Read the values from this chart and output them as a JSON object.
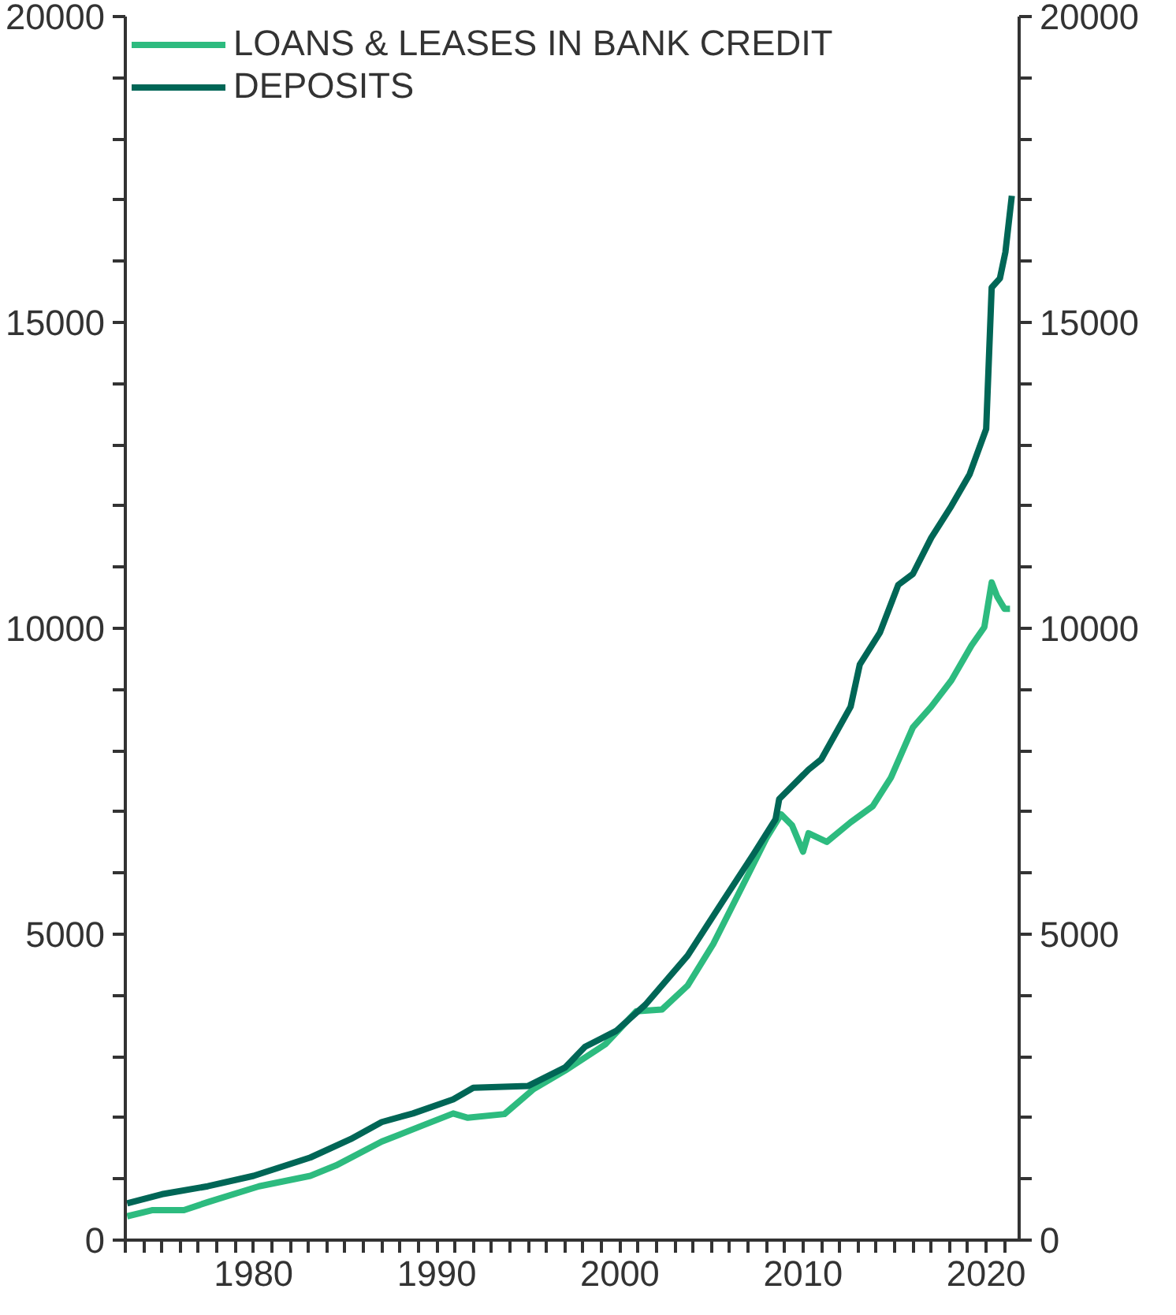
{
  "chart_data": {
    "type": "line",
    "legend": "top left",
    "grid": false,
    "xlim": [
      1973,
      2021.8
    ],
    "xticks": [
      {
        "value": 1973,
        "label": null
      },
      {
        "value": 1974,
        "label": null
      },
      {
        "value": 1975,
        "label": null
      },
      {
        "value": 1976,
        "label": null
      },
      {
        "value": 1977,
        "label": null
      },
      {
        "value": 1978,
        "label": null
      },
      {
        "value": 1979,
        "label": null
      },
      1980,
      {
        "value": 1981,
        "label": null
      },
      {
        "value": 1982,
        "label": null
      },
      {
        "value": 1983,
        "label": null
      },
      {
        "value": 1984,
        "label": null
      },
      {
        "value": 1985,
        "label": null
      },
      {
        "value": 1986,
        "label": null
      },
      {
        "value": 1987,
        "label": null
      },
      {
        "value": 1988,
        "label": null
      },
      {
        "value": 1989,
        "label": null
      },
      1990,
      {
        "value": 1991,
        "label": null
      },
      {
        "value": 1992,
        "label": null
      },
      {
        "value": 1993,
        "label": null
      },
      {
        "value": 1994,
        "label": null
      },
      {
        "value": 1995,
        "label": null
      },
      {
        "value": 1996,
        "label": null
      },
      {
        "value": 1997,
        "label": null
      },
      {
        "value": 1998,
        "label": null
      },
      {
        "value": 1999,
        "label": null
      },
      2000,
      {
        "value": 2001,
        "label": null
      },
      {
        "value": 2002,
        "label": null
      },
      {
        "value": 2003,
        "label": null
      },
      {
        "value": 2004,
        "label": null
      },
      {
        "value": 2005,
        "label": null
      },
      {
        "value": 2006,
        "label": null
      },
      {
        "value": 2007,
        "label": null
      },
      {
        "value": 2008,
        "label": null
      },
      {
        "value": 2009,
        "label": null
      },
      2010,
      {
        "value": 2011,
        "label": null
      },
      {
        "value": 2012,
        "label": null
      },
      {
        "value": 2013,
        "label": null
      },
      {
        "value": 2014,
        "label": null
      },
      {
        "value": 2015,
        "label": null
      },
      {
        "value": 2016,
        "label": null
      },
      {
        "value": 2017,
        "label": null
      },
      {
        "value": 2018,
        "label": null
      },
      {
        "value": 2019,
        "label": null
      },
      2020,
      {
        "value": 2021,
        "label": null
      }
    ],
    "ylim": [
      0,
      20000
    ],
    "yticks": [
      0,
      {
        "value": 1000,
        "label": null
      },
      {
        "value": 2000,
        "label": null
      },
      {
        "value": 3000,
        "label": null
      },
      {
        "value": 4000,
        "label": null
      },
      5000,
      {
        "value": 6000,
        "label": null
      },
      {
        "value": 7000,
        "label": null
      },
      {
        "value": 8000,
        "label": null
      },
      {
        "value": 9000,
        "label": null
      },
      10000,
      {
        "value": 11000,
        "label": null
      },
      {
        "value": 12000,
        "label": null
      },
      {
        "value": 13000,
        "label": null
      },
      {
        "value": 14000,
        "label": null
      },
      15000,
      {
        "value": 16000,
        "label": null
      },
      {
        "value": 17000,
        "label": null
      },
      {
        "value": 18000,
        "label": null
      },
      {
        "value": 19000,
        "label": null
      },
      20000
    ],
    "y2lim": [
      0,
      20000
    ],
    "y2ticks": [
      0,
      {
        "value": 1000,
        "label": null
      },
      {
        "value": 2000,
        "label": null
      },
      {
        "value": 3000,
        "label": null
      },
      {
        "value": 4000,
        "label": null
      },
      5000,
      {
        "value": 6000,
        "label": null
      },
      {
        "value": 7000,
        "label": null
      },
      {
        "value": 8000,
        "label": null
      },
      {
        "value": 9000,
        "label": null
      },
      10000,
      {
        "value": 11000,
        "label": null
      },
      {
        "value": 12000,
        "label": null
      },
      {
        "value": 13000,
        "label": null
      },
      {
        "value": 14000,
        "label": null
      },
      15000,
      {
        "value": 16000,
        "label": null
      },
      {
        "value": 17000,
        "label": null
      },
      {
        "value": 18000,
        "label": null
      },
      {
        "value": 19000,
        "label": null
      },
      20000
    ],
    "series": [
      {
        "name": "LOANS & LEASES IN BANK CREDIT",
        "color": "#2dbb7f",
        "x": [
          1973.1,
          1974.5,
          1976.2,
          1977.5,
          1980.3,
          1983.1,
          1984.5,
          1987,
          1989.2,
          1990.9,
          1991.7,
          1993.7,
          1995.3,
          1997,
          1999.2,
          2000.9,
          2002.3,
          2003.7,
          2005.1,
          2007,
          2008,
          2008.8,
          2009.4,
          2010,
          2010.3,
          2011.3,
          2012.6,
          2013.8,
          2014.8,
          2016,
          2017,
          2018.1,
          2019.2,
          2019.9,
          2020.3,
          2020.6,
          2021,
          2021.3
        ],
        "values": [
          390,
          490,
          490,
          620,
          880,
          1050,
          1220,
          1610,
          1870,
          2070,
          2000,
          2060,
          2470,
          2770,
          3200,
          3740,
          3770,
          4160,
          4840,
          5970,
          6570,
          6960,
          6780,
          6350,
          6650,
          6510,
          6830,
          7090,
          7560,
          8380,
          8720,
          9150,
          9720,
          10020,
          10750,
          10520,
          10320,
          10320
        ]
      },
      {
        "name": "DEPOSITS",
        "color": "#006656",
        "x": [
          1973.1,
          1975,
          1977.5,
          1980,
          1983.1,
          1985.3,
          1987,
          1988.7,
          1990.9,
          1992,
          1995,
          1997,
          1998.1,
          1999.8,
          2001.4,
          2003.7,
          2005.6,
          2007.3,
          2008.5,
          2008.7,
          2010.3,
          2011,
          2012.6,
          2013.1,
          2014.2,
          2015.2,
          2016,
          2017,
          2018.1,
          2019.1,
          2020,
          2020.3,
          2020.75,
          2021.05,
          2021.4
        ],
        "values": [
          600,
          750,
          880,
          1050,
          1350,
          1650,
          1930,
          2070,
          2300,
          2490,
          2520,
          2820,
          3160,
          3420,
          3850,
          4650,
          5530,
          6310,
          6880,
          7210,
          7690,
          7860,
          8720,
          9410,
          9930,
          10710,
          10890,
          11480,
          12000,
          12520,
          13260,
          15570,
          15720,
          16150,
          17070
        ]
      }
    ]
  }
}
